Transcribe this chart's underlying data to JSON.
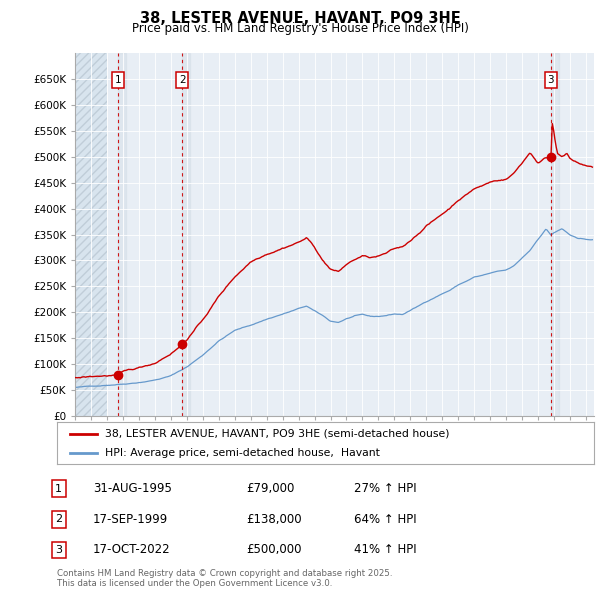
{
  "title": "38, LESTER AVENUE, HAVANT, PO9 3HE",
  "subtitle": "Price paid vs. HM Land Registry's House Price Index (HPI)",
  "ylim": [
    0,
    700000
  ],
  "yticks": [
    0,
    50000,
    100000,
    150000,
    200000,
    250000,
    300000,
    350000,
    400000,
    450000,
    500000,
    550000,
    600000,
    650000
  ],
  "ytick_labels": [
    "£0",
    "£50K",
    "£100K",
    "£150K",
    "£200K",
    "£250K",
    "£300K",
    "£350K",
    "£400K",
    "£450K",
    "£500K",
    "£550K",
    "£600K",
    "£650K"
  ],
  "price_color": "#cc0000",
  "hpi_color": "#6699cc",
  "plot_bg_color": "#e8eef5",
  "hatch_bg_color": "#d8e4ee",
  "sale_prices": [
    79000,
    138000,
    500000
  ],
  "sale_labels": [
    "1",
    "2",
    "3"
  ],
  "sale_label_texts": [
    "31-AUG-1995",
    "17-SEP-1999",
    "17-OCT-2022"
  ],
  "sale_amounts": [
    "£79,000",
    "£138,000",
    "£500,000"
  ],
  "sale_hpi_pct": [
    "27% ↑ HPI",
    "64% ↑ HPI",
    "41% ↑ HPI"
  ],
  "legend_line1": "38, LESTER AVENUE, HAVANT, PO9 3HE (semi-detached house)",
  "legend_line2": "HPI: Average price, semi-detached house,  Havant",
  "footer": "Contains HM Land Registry data © Crown copyright and database right 2025.\nThis data is licensed under the Open Government Licence v3.0.",
  "xlim_start": 1993.0,
  "xlim_end": 2025.5,
  "sale_year_nums": [
    1995.67,
    1999.72,
    2022.8
  ],
  "hatch_end": 1995.0
}
